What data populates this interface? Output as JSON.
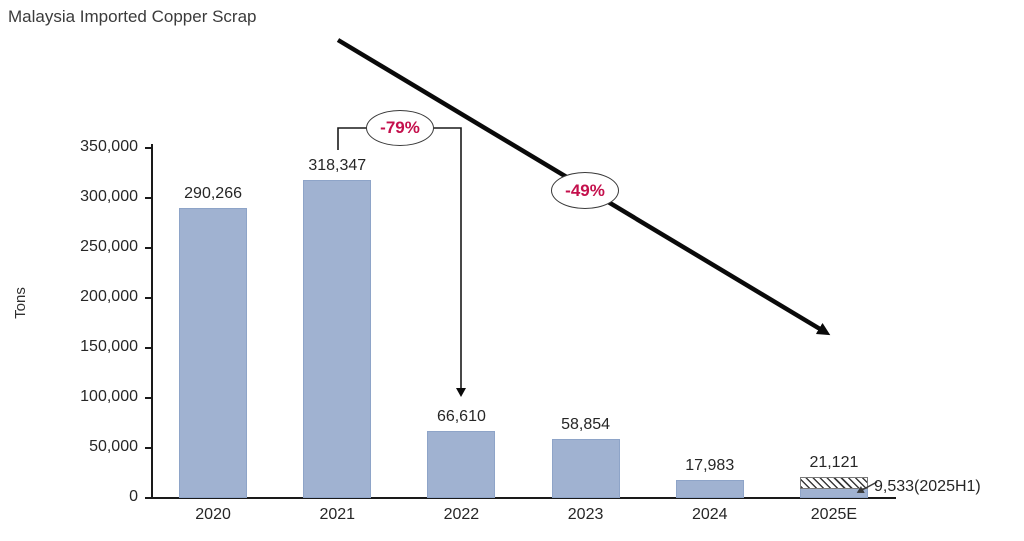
{
  "header": {
    "title": "Malaysia Imported Copper Scrap"
  },
  "chart_data": {
    "type": "bar",
    "title": "Malaysia Imported Copper Scrap",
    "xlabel": "",
    "ylabel": "Tons",
    "categories": [
      "2020",
      "2021",
      "2022",
      "2023",
      "2024",
      "2025E"
    ],
    "values": [
      290266,
      318347,
      66610,
      58854,
      17983,
      21121
    ],
    "value_labels": [
      "290,266",
      "318,347",
      "66,610",
      "58,854",
      "17,983",
      "21,121"
    ],
    "ylim": [
      0,
      350000
    ],
    "ytick_values": [
      0,
      50000,
      100000,
      150000,
      200000,
      250000,
      300000,
      350000
    ],
    "ytick_labels": [
      "0",
      "50,000",
      "100,000",
      "150,000",
      "200,000",
      "250,000",
      "300,000",
      "350,000"
    ],
    "grid": false,
    "legend": null,
    "bar_color": "#a0b2d1",
    "estimate": {
      "category": "2025E",
      "total_estimate": 21121,
      "h1_actual": 9533,
      "h1_label": "9,533(2025H1)",
      "style": "hatched-top"
    },
    "annotations": [
      {
        "id": "drop-2021-to-2022",
        "type": "bracket-arrow",
        "label": "-79%",
        "from_category": "2021",
        "to_category": "2022"
      },
      {
        "id": "overall-trend",
        "type": "trend-arrow",
        "label": "-49%",
        "direction": "down-right"
      }
    ],
    "annotation_text_color": "#c4104c"
  }
}
